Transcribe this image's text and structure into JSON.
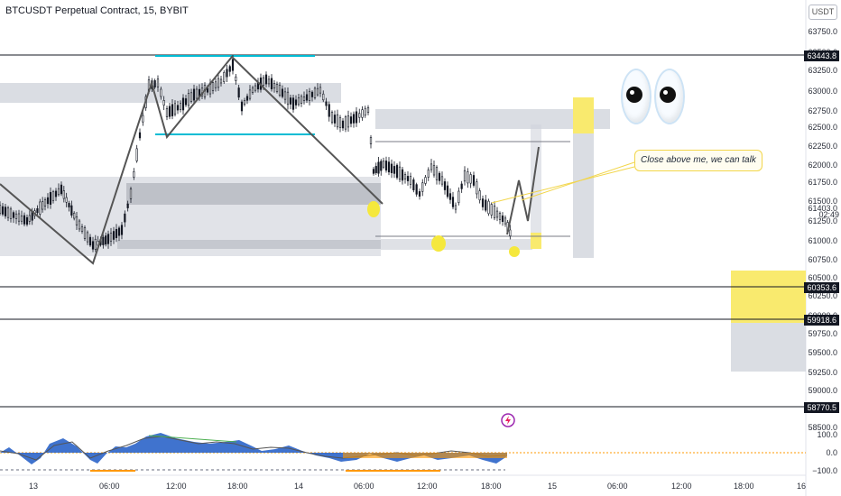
{
  "header": {
    "symbol_title": "BTCUSDT Perpetual Contract, 15, BYBIT",
    "currency": "USDT"
  },
  "price_axis": {
    "labels": [
      "63750.0",
      "63500.0",
      "63250.0",
      "63000.0",
      "62750.0",
      "62500.0",
      "62250.0",
      "62000.0",
      "61750.0",
      "61500.0",
      "61250.0",
      "61000.0",
      "60750.0",
      "60500.0",
      "60250.0",
      "60000.0",
      "59750.0",
      "59500.0",
      "59250.0",
      "59000.0",
      "58500.0"
    ],
    "current_price": "61403.0",
    "countdown": "02:49",
    "tags": [
      "63443.8",
      "60353.6",
      "59918.6",
      "58770.5"
    ]
  },
  "oscillator_axis": {
    "labels": [
      "100.0",
      "0.0",
      "−100.0"
    ]
  },
  "time_axis": {
    "labels": [
      "13",
      "06:00",
      "12:00",
      "18:00",
      "14",
      "06:00",
      "12:00",
      "18:00",
      "15",
      "06:00",
      "12:00",
      "18:00",
      "16"
    ]
  },
  "annotation": {
    "callout_text": "Close above me, we can talk"
  },
  "icons": {
    "eyes": "eyes-emoji-icon",
    "alert": "lightning-alert-icon"
  },
  "colors": {
    "bg": "#ffffff",
    "candle": "#131722",
    "zone_gray": "#d1d4dc",
    "zone_dark": "#b2b5be",
    "cyan_line": "#00bcd4",
    "yellow_zone": "#f9ea6e",
    "yellow_dot": "#f5e83d",
    "osc_blue": "#1e5bc6",
    "osc_orange": "#ff9800",
    "osc_green": "#4caf50",
    "zigzag": "#555555"
  }
}
